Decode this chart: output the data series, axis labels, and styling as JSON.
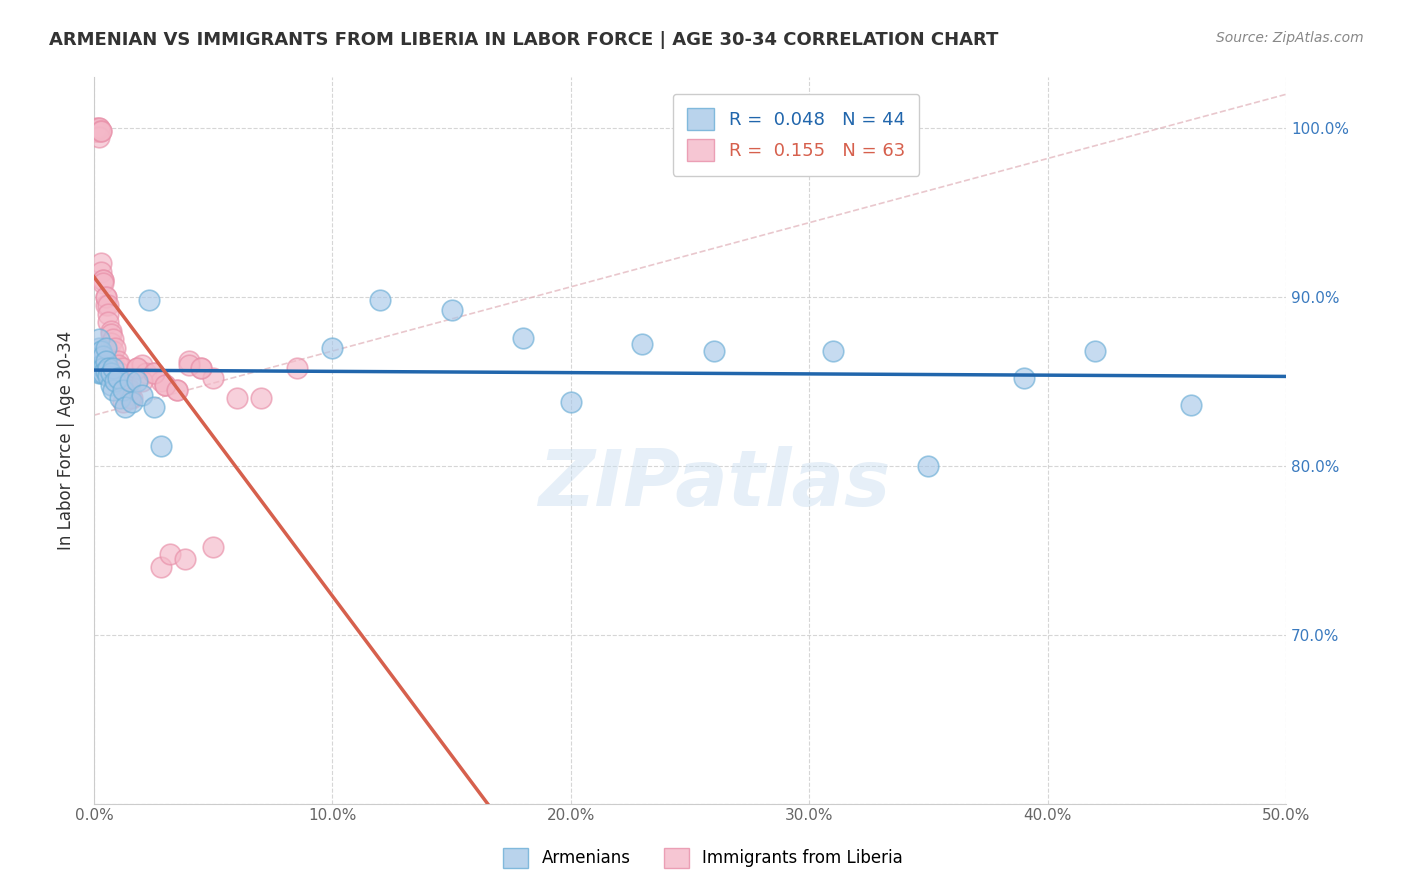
{
  "title": "ARMENIAN VS IMMIGRANTS FROM LIBERIA IN LABOR FORCE | AGE 30-34 CORRELATION CHART",
  "source": "Source: ZipAtlas.com",
  "ylabel": "In Labor Force | Age 30-34",
  "xlim": [
    0.0,
    0.5
  ],
  "ylim": [
    0.6,
    1.03
  ],
  "xticks": [
    0.0,
    0.1,
    0.2,
    0.3,
    0.4,
    0.5
  ],
  "xticklabels": [
    "0.0%",
    "10.0%",
    "20.0%",
    "30.0%",
    "40.0%",
    "50.0%"
  ],
  "yticks": [
    0.6,
    0.7,
    0.8,
    0.9,
    1.0
  ],
  "yticklabels_right": [
    "",
    "70.0%",
    "80.0%",
    "90.0%",
    "100.0%"
  ],
  "legend_blue_r": "R =  0.048",
  "legend_blue_n": "N = 44",
  "legend_pink_r": "R =  0.155",
  "legend_pink_n": "N = 63",
  "blue_color": "#a8c8e8",
  "blue_edge_color": "#6baed6",
  "pink_color": "#f4b8c8",
  "pink_edge_color": "#e88fa8",
  "blue_line_color": "#2166ac",
  "pink_line_color": "#d6604d",
  "ref_line_color": "#e0b0b8",
  "watermark": "ZIPatlas",
  "armenians_x": [
    0.001,
    0.001,
    0.002,
    0.002,
    0.002,
    0.003,
    0.003,
    0.003,
    0.004,
    0.004,
    0.004,
    0.005,
    0.005,
    0.005,
    0.006,
    0.006,
    0.007,
    0.007,
    0.008,
    0.008,
    0.009,
    0.01,
    0.011,
    0.012,
    0.013,
    0.015,
    0.016,
    0.018,
    0.02,
    0.023,
    0.025,
    0.028,
    0.1,
    0.12,
    0.15,
    0.18,
    0.2,
    0.23,
    0.26,
    0.31,
    0.35,
    0.39,
    0.42,
    0.46
  ],
  "armenians_y": [
    0.86,
    0.858,
    0.87,
    0.855,
    0.875,
    0.868,
    0.86,
    0.855,
    0.865,
    0.858,
    0.855,
    0.87,
    0.862,
    0.856,
    0.858,
    0.853,
    0.848,
    0.855,
    0.858,
    0.845,
    0.85,
    0.852,
    0.84,
    0.845,
    0.835,
    0.85,
    0.838,
    0.85,
    0.842,
    0.898,
    0.835,
    0.812,
    0.87,
    0.898,
    0.892,
    0.876,
    0.838,
    0.872,
    0.868,
    0.868,
    0.8,
    0.852,
    0.868,
    0.836
  ],
  "liberia_x": [
    0.001,
    0.001,
    0.001,
    0.002,
    0.002,
    0.002,
    0.002,
    0.003,
    0.003,
    0.003,
    0.003,
    0.004,
    0.004,
    0.004,
    0.005,
    0.005,
    0.005,
    0.006,
    0.006,
    0.006,
    0.007,
    0.007,
    0.007,
    0.008,
    0.008,
    0.008,
    0.009,
    0.009,
    0.01,
    0.01,
    0.011,
    0.011,
    0.012,
    0.013,
    0.014,
    0.015,
    0.016,
    0.018,
    0.02,
    0.022,
    0.025,
    0.028,
    0.03,
    0.035,
    0.04,
    0.045,
    0.05,
    0.06,
    0.07,
    0.085,
    0.012,
    0.015,
    0.018,
    0.02,
    0.025,
    0.03,
    0.035,
    0.04,
    0.045,
    0.05,
    0.028,
    0.032,
    0.038
  ],
  "liberia_y": [
    0.998,
    1.0,
    0.998,
    0.998,
    1.0,
    1.0,
    0.995,
    0.998,
    0.998,
    0.92,
    0.915,
    0.91,
    0.91,
    0.908,
    0.9,
    0.895,
    0.9,
    0.895,
    0.89,
    0.885,
    0.88,
    0.878,
    0.873,
    0.875,
    0.868,
    0.862,
    0.87,
    0.858,
    0.862,
    0.86,
    0.855,
    0.85,
    0.858,
    0.848,
    0.848,
    0.845,
    0.84,
    0.858,
    0.86,
    0.855,
    0.855,
    0.85,
    0.848,
    0.845,
    0.862,
    0.858,
    0.852,
    0.84,
    0.84,
    0.858,
    0.838,
    0.84,
    0.858,
    0.85,
    0.855,
    0.848,
    0.845,
    0.86,
    0.858,
    0.752,
    0.74,
    0.748,
    0.745
  ]
}
